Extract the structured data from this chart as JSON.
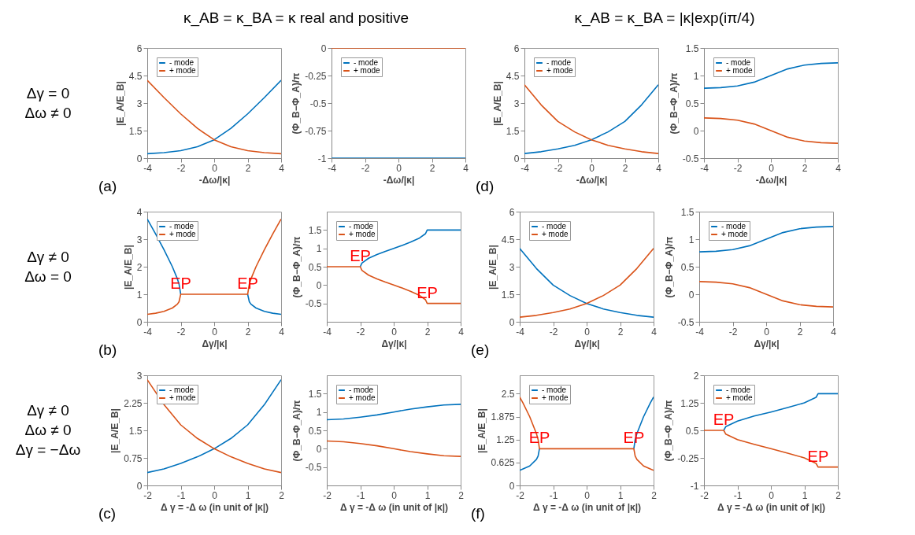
{
  "chart_data": [
    {
      "type": "other",
      "title": "κ_AB = κ_BA = κ real and positive"
    },
    {
      "type": "other",
      "title": "κ_AB = κ_BA = |κ|exp(iπ/4)"
    },
    {
      "type": "other",
      "annotations": [
        "Δγ = 0",
        "Δω ≠ 0"
      ]
    },
    {
      "type": "line",
      "xlabel": "-Δω/|κ|",
      "ylabel": "|E_A/E_B|",
      "xlim": [
        -4,
        4
      ],
      "xticks": [
        -4,
        -2,
        0,
        2,
        4
      ],
      "ylim": [
        0,
        6
      ],
      "yticks": [
        0,
        1.5,
        3,
        4.5,
        6
      ],
      "grid": false,
      "legend": "top left",
      "annotations": [
        "(a)"
      ],
      "series": [
        {
          "name": "- mode",
          "color": "#0072bd",
          "x": [
            -4,
            -3,
            -2,
            -1,
            0,
            1,
            2,
            3,
            4
          ],
          "values": [
            0.24,
            0.3,
            0.41,
            0.62,
            1,
            1.62,
            2.41,
            3.3,
            4.24
          ]
        },
        {
          "name": "+ mode",
          "color": "#d95319",
          "x": [
            -4,
            -3,
            -2,
            -1,
            0,
            1,
            2,
            3,
            4
          ],
          "values": [
            4.24,
            3.3,
            2.41,
            1.62,
            1,
            0.62,
            0.41,
            0.3,
            0.24
          ]
        }
      ]
    },
    {
      "type": "line",
      "xlabel": "-Δω/|κ|",
      "ylabel": "(Φ_B−Φ_A)/π",
      "xlim": [
        -4,
        4
      ],
      "xticks": [
        -4,
        -2,
        0,
        2,
        4
      ],
      "ylim": [
        -1,
        0
      ],
      "yticks": [
        -1,
        -0.75,
        -0.5,
        -0.25,
        0
      ],
      "grid": false,
      "legend": "top left",
      "series": [
        {
          "name": "- mode",
          "color": "#0072bd",
          "x": [
            -4,
            4
          ],
          "values": [
            -1,
            -1
          ]
        },
        {
          "name": "+ mode",
          "color": "#d95319",
          "x": [
            -4,
            4
          ],
          "values": [
            0,
            0
          ]
        }
      ]
    },
    {
      "type": "line",
      "xlabel": "-Δω/|κ|",
      "ylabel": "|E_A/E_B|",
      "xlim": [
        -4,
        4
      ],
      "xticks": [
        -4,
        -2,
        0,
        2,
        4
      ],
      "ylim": [
        0,
        6
      ],
      "yticks": [
        0,
        1.5,
        3,
        4.5,
        6
      ],
      "grid": false,
      "legend": "top left",
      "annotations": [
        "(d)"
      ],
      "series": [
        {
          "name": "- mode",
          "color": "#0072bd",
          "x": [
            -4,
            -3,
            -2,
            -1,
            0,
            1,
            2,
            3,
            4
          ],
          "values": [
            0.25,
            0.35,
            0.5,
            0.7,
            1,
            1.43,
            2,
            2.9,
            4
          ]
        },
        {
          "name": "+ mode",
          "color": "#d95319",
          "x": [
            -4,
            -3,
            -2,
            -1,
            0,
            1,
            2,
            3,
            4
          ],
          "values": [
            4,
            2.9,
            2,
            1.43,
            1,
            0.7,
            0.5,
            0.35,
            0.25
          ]
        }
      ]
    },
    {
      "type": "line",
      "xlabel": "-Δω/|κ|",
      "ylabel": "(Φ_B−Φ_A)/π",
      "xlim": [
        -4,
        4
      ],
      "xticks": [
        -4,
        -2,
        0,
        2,
        4
      ],
      "ylim": [
        -0.5,
        1.5
      ],
      "yticks": [
        -0.5,
        0,
        0.5,
        1,
        1.5
      ],
      "grid": false,
      "legend": "top left",
      "series": [
        {
          "name": "- mode",
          "color": "#0072bd",
          "x": [
            -4,
            -3,
            -2,
            -1,
            0,
            1,
            2,
            3,
            4
          ],
          "values": [
            0.77,
            0.78,
            0.81,
            0.88,
            1,
            1.12,
            1.19,
            1.22,
            1.23
          ]
        },
        {
          "name": "+ mode",
          "color": "#d95319",
          "x": [
            -4,
            -3,
            -2,
            -1,
            0,
            1,
            2,
            3,
            4
          ],
          "values": [
            0.23,
            0.22,
            0.19,
            0.12,
            0,
            -0.12,
            -0.19,
            -0.22,
            -0.23
          ]
        }
      ]
    },
    {
      "type": "other",
      "annotations": [
        "Δγ ≠ 0",
        "Δω = 0"
      ]
    },
    {
      "type": "line",
      "xlabel": "Δγ/|κ|",
      "ylabel": "|E_A/E_B|",
      "xlim": [
        -4,
        4
      ],
      "xticks": [
        -4,
        -2,
        0,
        2,
        4
      ],
      "ylim": [
        0,
        4
      ],
      "yticks": [
        0,
        1,
        2,
        3,
        4
      ],
      "grid": false,
      "legend": "top left",
      "annotations": [
        "(b)",
        {
          "text": "EP",
          "x": -2,
          "y": 1
        },
        {
          "text": "EP",
          "x": 2,
          "y": 1
        }
      ],
      "series": [
        {
          "name": "- mode",
          "color": "#0072bd",
          "x": [
            -4,
            -3.5,
            -3,
            -2.5,
            -2.2,
            -2.1,
            -2,
            0,
            2,
            2.1,
            2.2,
            2.5,
            3,
            3.5,
            4
          ],
          "values": [
            3.73,
            3.19,
            2.62,
            2,
            1.56,
            1.37,
            1,
            null,
            1,
            0.73,
            0.64,
            0.5,
            0.38,
            0.31,
            0.27
          ]
        },
        {
          "name": "+ mode",
          "color": "#d95319",
          "x": [
            -4,
            -3.5,
            -3,
            -2.5,
            -2.2,
            -2.1,
            -2,
            2,
            2.1,
            2.2,
            2.5,
            3,
            3.5,
            4
          ],
          "values": [
            0.27,
            0.31,
            0.38,
            0.5,
            0.64,
            0.73,
            1,
            1,
            1.37,
            1.56,
            2,
            2.62,
            3.19,
            3.73
          ]
        }
      ]
    },
    {
      "type": "line",
      "xlabel": "Δγ/|κ|",
      "ylabel": "(Φ_B−Φ_A)/π",
      "xlim": [
        -4,
        4
      ],
      "xticks": [
        -4,
        -2,
        0,
        2,
        4
      ],
      "ylim": [
        -1,
        2
      ],
      "yticks": [
        -0.5,
        0,
        0.5,
        1,
        1.5
      ],
      "grid": false,
      "legend": "top left",
      "annotations": [
        {
          "text": "EP",
          "x": -2,
          "y": 0.5
        },
        {
          "text": "EP",
          "x": 2,
          "y": -0.5
        }
      ],
      "series": [
        {
          "name": "- mode",
          "color": "#0072bd",
          "x": [
            -2,
            -1.9,
            -1.5,
            -1,
            -0.5,
            0,
            0.5,
            1,
            1.5,
            1.9,
            2,
            4
          ],
          "values": [
            0.5,
            0.6,
            0.73,
            0.83,
            0.92,
            1,
            1.08,
            1.17,
            1.27,
            1.4,
            1.5,
            1.5
          ]
        },
        {
          "name": "+ mode",
          "color": "#d95319",
          "x": [
            -4,
            -2,
            -1.9,
            -1.5,
            -1,
            -0.5,
            0,
            0.5,
            1,
            1.5,
            1.9,
            2,
            4
          ],
          "values": [
            0.5,
            0.5,
            0.4,
            0.27,
            0.17,
            0.08,
            0,
            -0.08,
            -0.17,
            -0.27,
            -0.4,
            -0.5,
            -0.5
          ]
        }
      ]
    },
    {
      "type": "line",
      "xlabel": "Δγ/|κ|",
      "ylabel": "|E_A/E_B|",
      "xlim": [
        -4,
        4
      ],
      "xticks": [
        -4,
        -2,
        0,
        2,
        4
      ],
      "ylim": [
        0,
        6
      ],
      "yticks": [
        0,
        1.5,
        3,
        4.5,
        6
      ],
      "grid": false,
      "legend": "top left",
      "annotations": [
        "(e)"
      ],
      "series": [
        {
          "name": "- mode",
          "color": "#0072bd",
          "x": [
            -4,
            -3,
            -2,
            -1,
            0,
            1,
            2,
            3,
            4
          ],
          "values": [
            4,
            2.9,
            2,
            1.43,
            1,
            0.7,
            0.5,
            0.35,
            0.25
          ]
        },
        {
          "name": "+ mode",
          "color": "#d95319",
          "x": [
            -4,
            -3,
            -2,
            -1,
            0,
            1,
            2,
            3,
            4
          ],
          "values": [
            0.25,
            0.35,
            0.5,
            0.7,
            1,
            1.43,
            2,
            2.9,
            4
          ]
        }
      ]
    },
    {
      "type": "line",
      "xlabel": "Δγ/|κ|",
      "ylabel": "(Φ_B−Φ_A)/π",
      "xlim": [
        -4,
        4
      ],
      "xticks": [
        -4,
        -2,
        0,
        2,
        4
      ],
      "ylim": [
        -0.5,
        1.5
      ],
      "yticks": [
        -0.5,
        0,
        0.5,
        1,
        1.5
      ],
      "grid": false,
      "legend": "top left",
      "series": [
        {
          "name": "- mode",
          "color": "#0072bd",
          "x": [
            -4,
            -3,
            -2,
            -1,
            0,
            1,
            2,
            3,
            4
          ],
          "values": [
            0.77,
            0.78,
            0.81,
            0.88,
            1,
            1.12,
            1.19,
            1.22,
            1.23
          ]
        },
        {
          "name": "+ mode",
          "color": "#d95319",
          "x": [
            -4,
            -3,
            -2,
            -1,
            0,
            1,
            2,
            3,
            4
          ],
          "values": [
            0.23,
            0.22,
            0.19,
            0.12,
            0,
            -0.12,
            -0.19,
            -0.22,
            -0.23
          ]
        }
      ]
    },
    {
      "type": "other",
      "annotations": [
        "Δγ ≠ 0",
        "Δω ≠ 0",
        "Δγ = −Δω"
      ]
    },
    {
      "type": "line",
      "xlabel": "Δ γ = -Δ ω (in unit of |κ|)",
      "ylabel": "|E_A/E_B|",
      "xlim": [
        -2,
        2
      ],
      "xticks": [
        -2,
        -1,
        0,
        1,
        2
      ],
      "ylim": [
        0,
        3
      ],
      "yticks": [
        0,
        0.75,
        1.5,
        2.25,
        3
      ],
      "grid": false,
      "legend": "top left",
      "annotations": [
        "(c)"
      ],
      "series": [
        {
          "name": "- mode",
          "color": "#0072bd",
          "x": [
            -2,
            -1.5,
            -1,
            -0.5,
            0,
            0.5,
            1,
            1.5,
            2
          ],
          "values": [
            0.35,
            0.45,
            0.6,
            0.78,
            1,
            1.28,
            1.65,
            2.2,
            2.88
          ]
        },
        {
          "name": "+ mode",
          "color": "#d95319",
          "x": [
            -2,
            -1.5,
            -1,
            -0.5,
            0,
            0.5,
            1,
            1.5,
            2
          ],
          "values": [
            2.88,
            2.2,
            1.65,
            1.28,
            1,
            0.78,
            0.6,
            0.45,
            0.35
          ]
        }
      ]
    },
    {
      "type": "line",
      "xlabel": "Δ γ = -Δ ω (in unit of |κ|)",
      "ylabel": "(Φ_B−Φ_A)/π",
      "xlim": [
        -2,
        2
      ],
      "xticks": [
        -2,
        -1,
        0,
        1,
        2
      ],
      "ylim": [
        -1,
        2
      ],
      "yticks": [
        -0.5,
        0,
        0.5,
        1,
        1.5
      ],
      "grid": false,
      "legend": "top left",
      "series": [
        {
          "name": "- mode",
          "color": "#0072bd",
          "x": [
            -2,
            -1.5,
            -1,
            -0.5,
            0,
            0.5,
            1,
            1.5,
            2
          ],
          "values": [
            0.79,
            0.81,
            0.86,
            0.92,
            1,
            1.08,
            1.14,
            1.19,
            1.21
          ]
        },
        {
          "name": "+ mode",
          "color": "#d95319",
          "x": [
            -2,
            -1.5,
            -1,
            -0.5,
            0,
            0.5,
            1,
            1.5,
            2
          ],
          "values": [
            0.21,
            0.19,
            0.14,
            0.08,
            0,
            -0.08,
            -0.14,
            -0.19,
            -0.21
          ]
        }
      ]
    },
    {
      "type": "line",
      "xlabel": "Δ γ = -Δ ω (in unit of |κ|)",
      "ylabel": "|E_A/E_B|",
      "xlim": [
        -2,
        2
      ],
      "xticks": [
        -2,
        -1,
        0,
        1,
        2
      ],
      "ylim": [
        0,
        3
      ],
      "yticks": [
        0,
        0.625,
        1.25,
        1.875,
        2.5
      ],
      "grid": false,
      "legend": "top left",
      "annotations": [
        "(f)",
        {
          "text": "EP",
          "x": -1.41,
          "y": 1
        },
        {
          "text": "EP",
          "x": 1.41,
          "y": 1
        }
      ],
      "series": [
        {
          "name": "- mode",
          "color": "#0072bd",
          "x": [
            -2,
            -1.9,
            -1.7,
            -1.5,
            -1.45,
            -1.41,
            0,
            1.41,
            1.45,
            1.5,
            1.7,
            1.9,
            2
          ],
          "values": [
            0.41,
            0.45,
            0.53,
            0.71,
            0.8,
            1,
            null,
            1,
            1.25,
            1.41,
            1.87,
            2.24,
            2.41
          ]
        },
        {
          "name": "+ mode",
          "color": "#d95319",
          "x": [
            -2,
            -1.9,
            -1.7,
            -1.5,
            -1.45,
            -1.41,
            1.41,
            1.45,
            1.5,
            1.7,
            1.9,
            2
          ],
          "values": [
            2.41,
            2.24,
            1.87,
            1.41,
            1.25,
            1,
            1,
            0.8,
            0.71,
            0.53,
            0.45,
            0.41
          ]
        }
      ]
    },
    {
      "type": "line",
      "xlabel": "Δ γ = -Δ ω (in unit of |κ|)",
      "ylabel": "(Φ_B−Φ_A)/π",
      "xlim": [
        -2,
        2
      ],
      "xticks": [
        -2,
        -1,
        0,
        1,
        2
      ],
      "ylim": [
        -1,
        2
      ],
      "yticks": [
        -1,
        -0.25,
        0.5,
        1.25,
        2
      ],
      "grid": false,
      "legend": "top left",
      "annotations": [
        {
          "text": "EP",
          "x": -1.41,
          "y": 0.5
        },
        {
          "text": "EP",
          "x": 1.41,
          "y": -0.5
        }
      ],
      "series": [
        {
          "name": "- mode",
          "color": "#0072bd",
          "x": [
            -1.41,
            -1.35,
            -1,
            -0.5,
            0,
            0.5,
            1,
            1.35,
            1.41,
            2
          ],
          "values": [
            0.5,
            0.6,
            0.75,
            0.89,
            1,
            1.12,
            1.25,
            1.4,
            1.5,
            1.5
          ]
        },
        {
          "name": "+ mode",
          "color": "#d95319",
          "x": [
            -2,
            -1.41,
            -1.35,
            -1,
            -0.5,
            0,
            0.5,
            1,
            1.35,
            1.41,
            2
          ],
          "values": [
            0.5,
            0.5,
            0.4,
            0.25,
            0.12,
            0,
            -0.12,
            -0.25,
            -0.4,
            -0.5,
            -0.5
          ]
        }
      ]
    }
  ]
}
